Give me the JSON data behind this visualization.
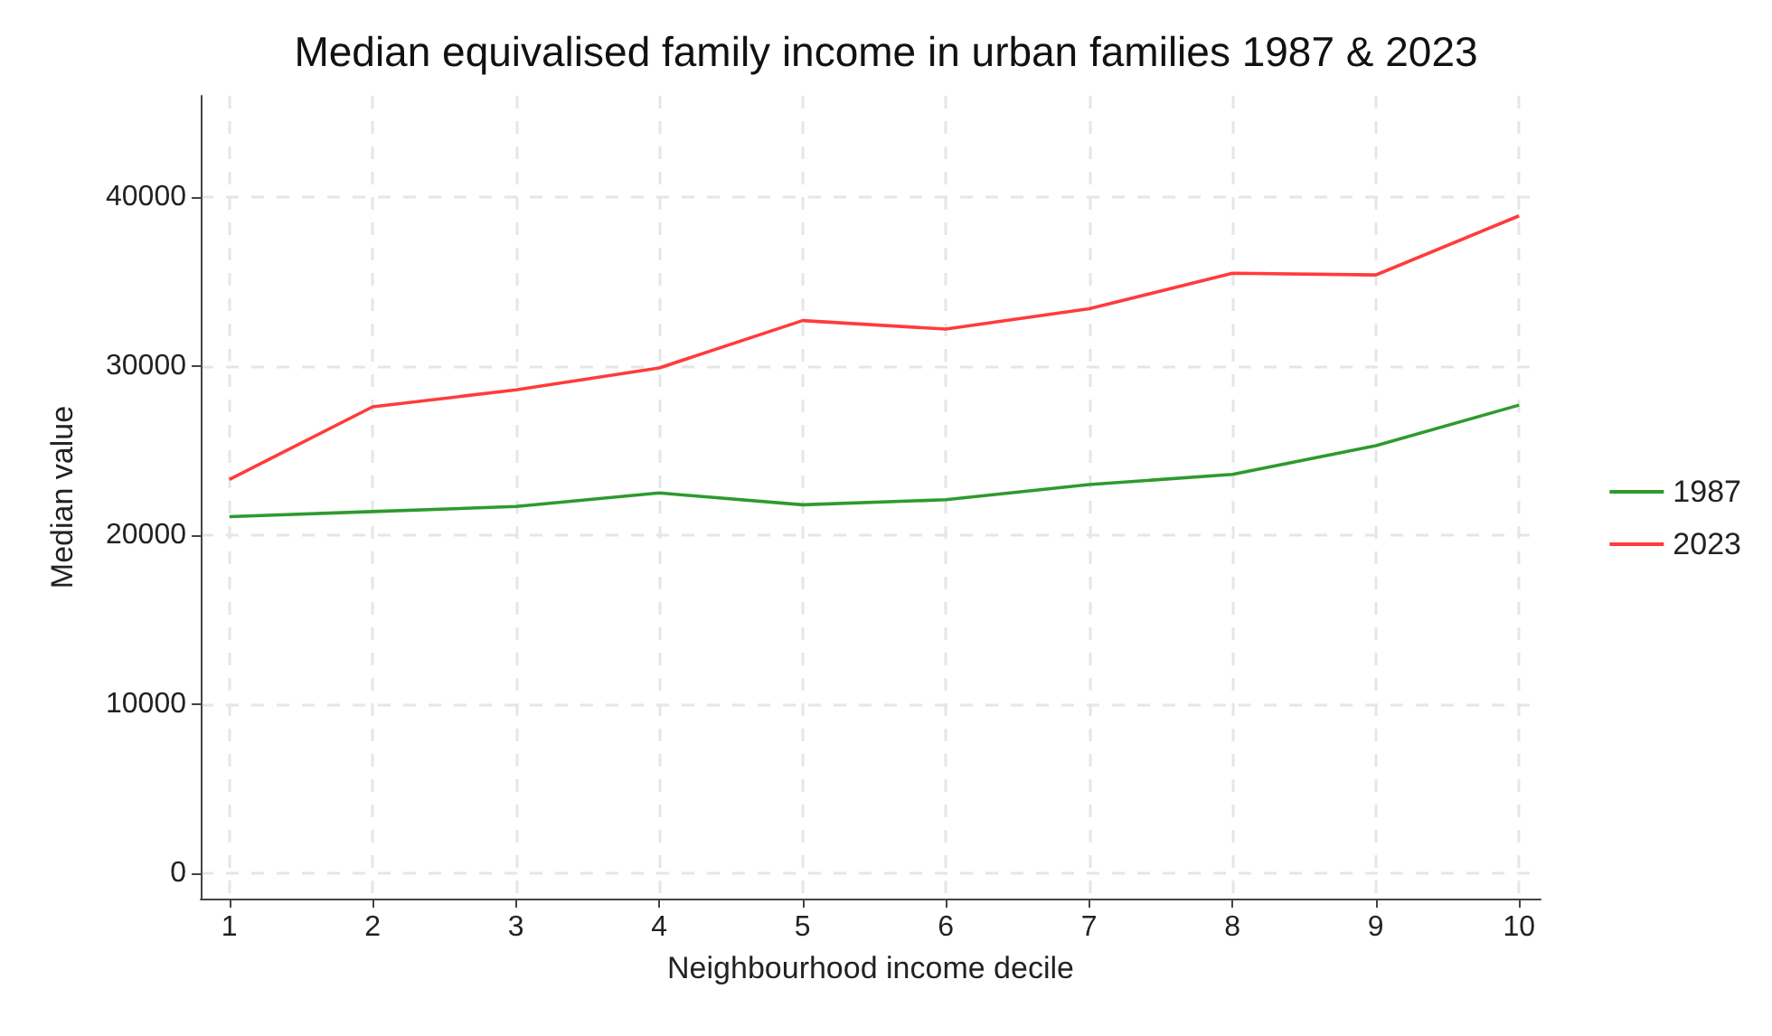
{
  "chart_data": {
    "type": "line",
    "title": "Median equivalised family income in urban families 1987 & 2023",
    "xlabel": "Neighbourhood income decile",
    "ylabel": "Median value",
    "x": [
      1,
      2,
      3,
      4,
      5,
      6,
      7,
      8,
      9,
      10
    ],
    "series": [
      {
        "name": "1987",
        "color": "#2e9a2e",
        "values": [
          21100,
          21400,
          21700,
          22500,
          21800,
          22100,
          23000,
          23600,
          25300,
          27700
        ]
      },
      {
        "name": "2023",
        "color": "#ff3b3b",
        "values": [
          23300,
          27600,
          28600,
          29900,
          32700,
          32200,
          33400,
          35500,
          35400,
          38900
        ]
      }
    ],
    "xlim": [
      0.8,
      10.15
    ],
    "xticks": [
      1,
      2,
      3,
      4,
      5,
      6,
      7,
      8,
      9,
      10
    ],
    "ylim": [
      -1500,
      46000
    ],
    "yticks": [
      0,
      10000,
      20000,
      30000,
      40000
    ],
    "grid": true,
    "legend": "right",
    "marker": "none",
    "line_style": "solid"
  }
}
